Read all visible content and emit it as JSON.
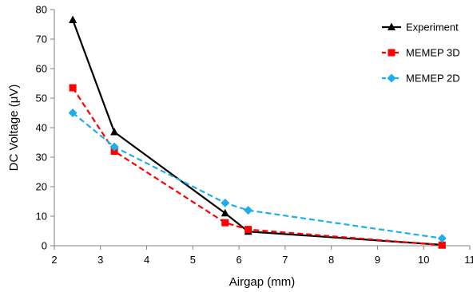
{
  "chart_data": {
    "type": "line",
    "xlabel": "Airgap (mm)",
    "ylabel": "DC Voltage (μV)",
    "xlim": [
      2,
      11
    ],
    "ylim": [
      0,
      80
    ],
    "xticks": [
      2,
      3,
      4,
      5,
      6,
      7,
      8,
      9,
      10,
      11
    ],
    "yticks": [
      0,
      10,
      20,
      30,
      40,
      50,
      60,
      70,
      80
    ],
    "grid": false,
    "legend_position": "top-right",
    "series": [
      {
        "name": "Experiment",
        "color": "#000000",
        "marker": "triangle",
        "dash": "solid",
        "x": [
          2.4,
          3.3,
          5.7,
          6.2,
          10.4
        ],
        "y": [
          76.5,
          38.5,
          11.0,
          4.8,
          0.3
        ]
      },
      {
        "name": "MEMEP 3D",
        "color": "#ff0000",
        "marker": "square",
        "dash": "dashed",
        "x": [
          2.4,
          3.3,
          5.7,
          6.2,
          10.4
        ],
        "y": [
          53.5,
          32.0,
          7.8,
          5.5,
          0.2
        ]
      },
      {
        "name": "MEMEP 2D",
        "color": "#1eaee8",
        "marker": "diamond",
        "dash": "dashed",
        "x": [
          2.4,
          3.3,
          5.7,
          6.2,
          10.4
        ],
        "y": [
          45.0,
          33.5,
          14.5,
          12.0,
          2.5
        ]
      }
    ]
  }
}
